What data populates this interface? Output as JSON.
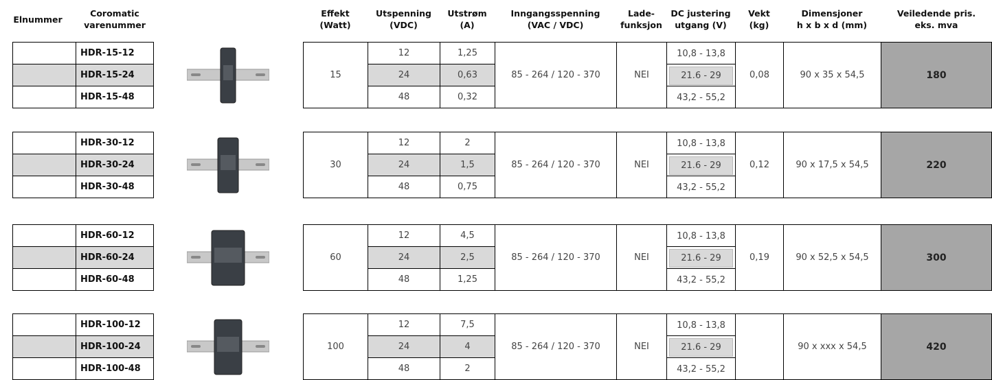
{
  "header": {
    "columns": [
      [
        "Elnummer"
      ],
      [
        "Coromatic",
        "varenummer"
      ],
      [
        "Effekt",
        "(Watt)"
      ],
      [
        "Utspenning",
        "(VDC)"
      ],
      [
        "Utstrøm",
        "(A)"
      ],
      [
        "Inngangsspenning",
        "(VAC / VDC)"
      ],
      [
        "Lade-",
        "funksjon"
      ],
      [
        "DC justering",
        "utgang (V)"
      ],
      [
        "Vekt",
        "(kg)"
      ],
      [
        "Dimensjoner",
        "h x b x d (mm)"
      ],
      [
        "Veiledende pris.",
        "eks. mva"
      ]
    ]
  },
  "groups": [
    {
      "power": "15",
      "input": "85 - 264 / 120 - 370",
      "charging": "NEI",
      "weight": "0,08",
      "dimensions": "90 x 35 x 54,5",
      "price": "180",
      "rows": [
        {
          "item": "HDR-15-12",
          "voltage": "12",
          "current": "1,25",
          "dc_adjust": "10,8 - 13,8"
        },
        {
          "item": "HDR-15-24",
          "voltage": "24",
          "current": "0,63",
          "dc_adjust": "21.6 - 29"
        },
        {
          "item": "HDR-15-48",
          "voltage": "48",
          "current": "0,32",
          "dc_adjust": "43,2 - 55,2"
        }
      ]
    },
    {
      "power": "30",
      "input": "85 - 264 / 120 - 370",
      "charging": "NEI",
      "weight": "0,12",
      "dimensions": "90 x 17,5 x 54,5",
      "price": "220",
      "rows": [
        {
          "item": "HDR-30-12",
          "voltage": "12",
          "current": "2",
          "dc_adjust": "10,8 - 13,8"
        },
        {
          "item": "HDR-30-24",
          "voltage": "24",
          "current": "1,5",
          "dc_adjust": "21.6 - 29"
        },
        {
          "item": "HDR-30-48",
          "voltage": "48",
          "current": "0,75",
          "dc_adjust": "43,2 - 55,2"
        }
      ]
    },
    {
      "power": "60",
      "input": "85 - 264 / 120 - 370",
      "charging": "NEI",
      "weight": "0,19",
      "dimensions": "90 x 52,5 x 54,5",
      "price": "300",
      "rows": [
        {
          "item": "HDR-60-12",
          "voltage": "12",
          "current": "4,5",
          "dc_adjust": "10,8 - 13,8"
        },
        {
          "item": "HDR-60-24",
          "voltage": "24",
          "current": "2,5",
          "dc_adjust": "21.6 - 29"
        },
        {
          "item": "HDR-60-48",
          "voltage": "48",
          "current": "1,25",
          "dc_adjust": "43,2 - 55,2"
        }
      ]
    },
    {
      "power": "100",
      "input": "85 - 264 / 120 - 370",
      "charging": "NEI",
      "dimensions": "90 x xxx x 54,5",
      "price": "420",
      "rows": [
        {
          "item": "HDR-100-12",
          "voltage": "12",
          "current": "7,5",
          "dc_adjust": "10,8 - 13,8"
        },
        {
          "item": "HDR-100-24",
          "voltage": "24",
          "current": "4",
          "dc_adjust": "21.6 - 29"
        },
        {
          "item": "HDR-100-48",
          "voltage": "48",
          "current": "2",
          "dc_adjust": "43,2 - 55,2"
        }
      ]
    }
  ]
}
